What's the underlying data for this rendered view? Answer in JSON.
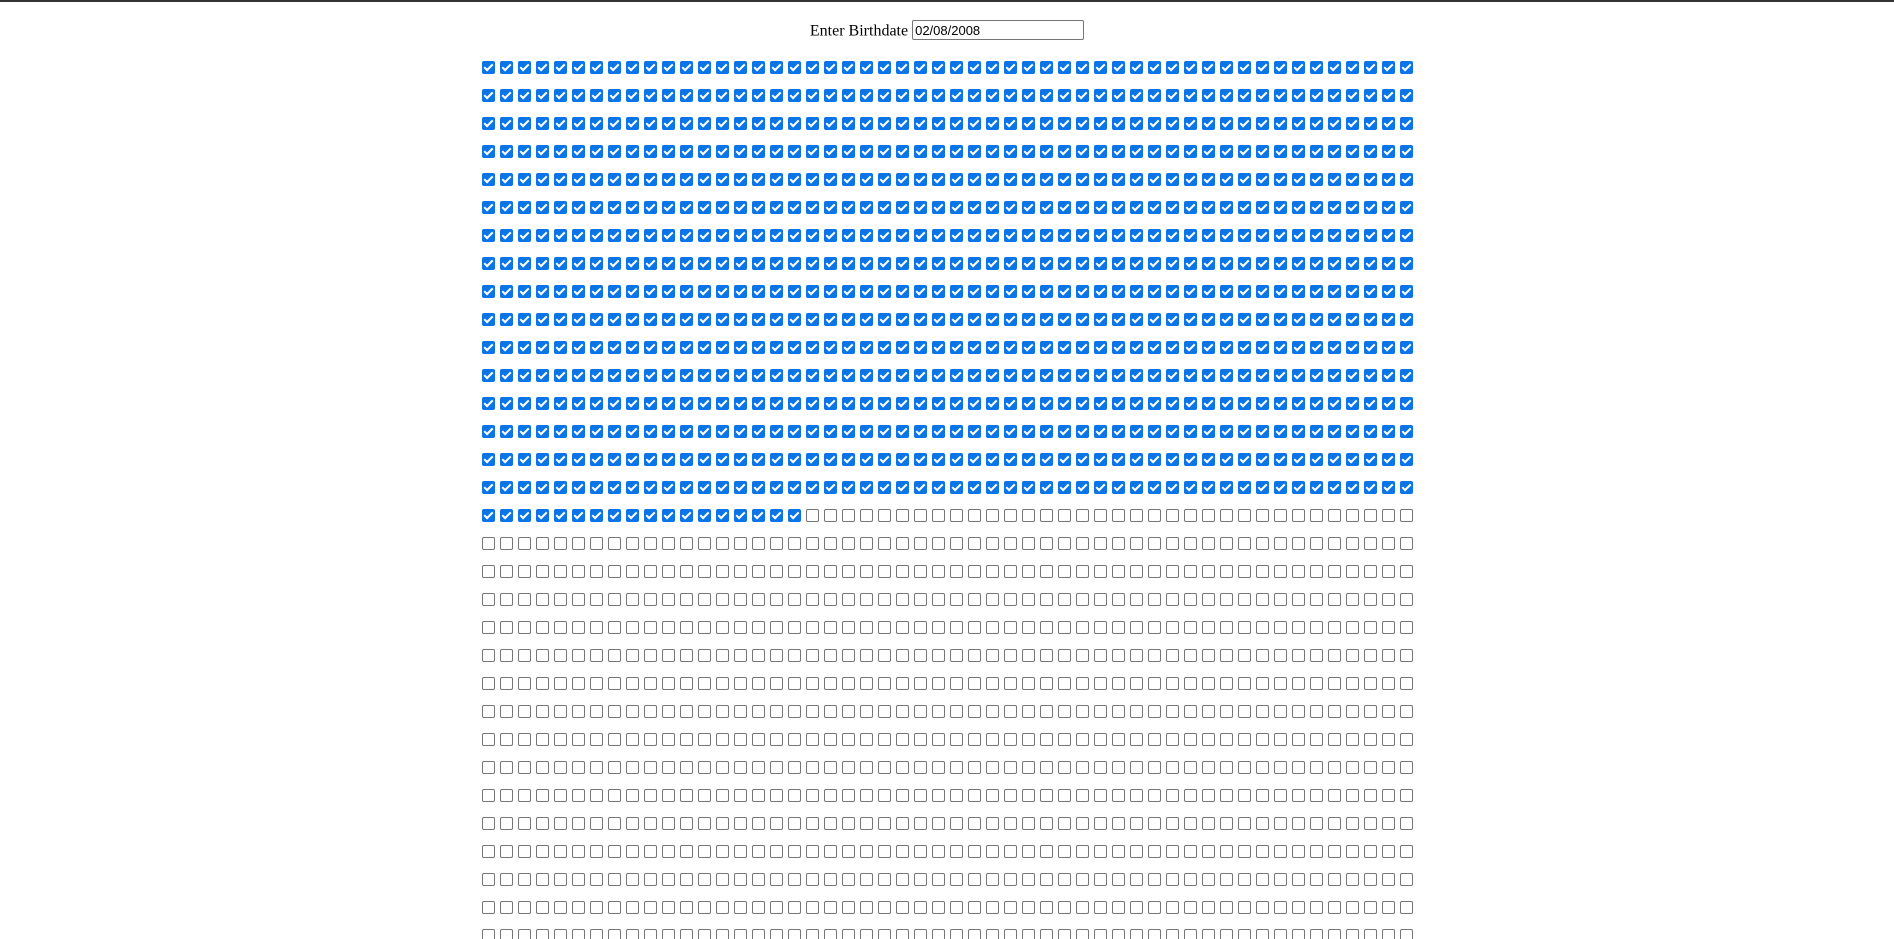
{
  "form": {
    "label": "Enter Birthdate",
    "birthdate_value": "02/08/2008"
  },
  "grid": {
    "columns": 52,
    "rows": 32,
    "checked_count": 850,
    "checked_color": "#0b75e8",
    "unchecked_border_color": "#767676"
  }
}
